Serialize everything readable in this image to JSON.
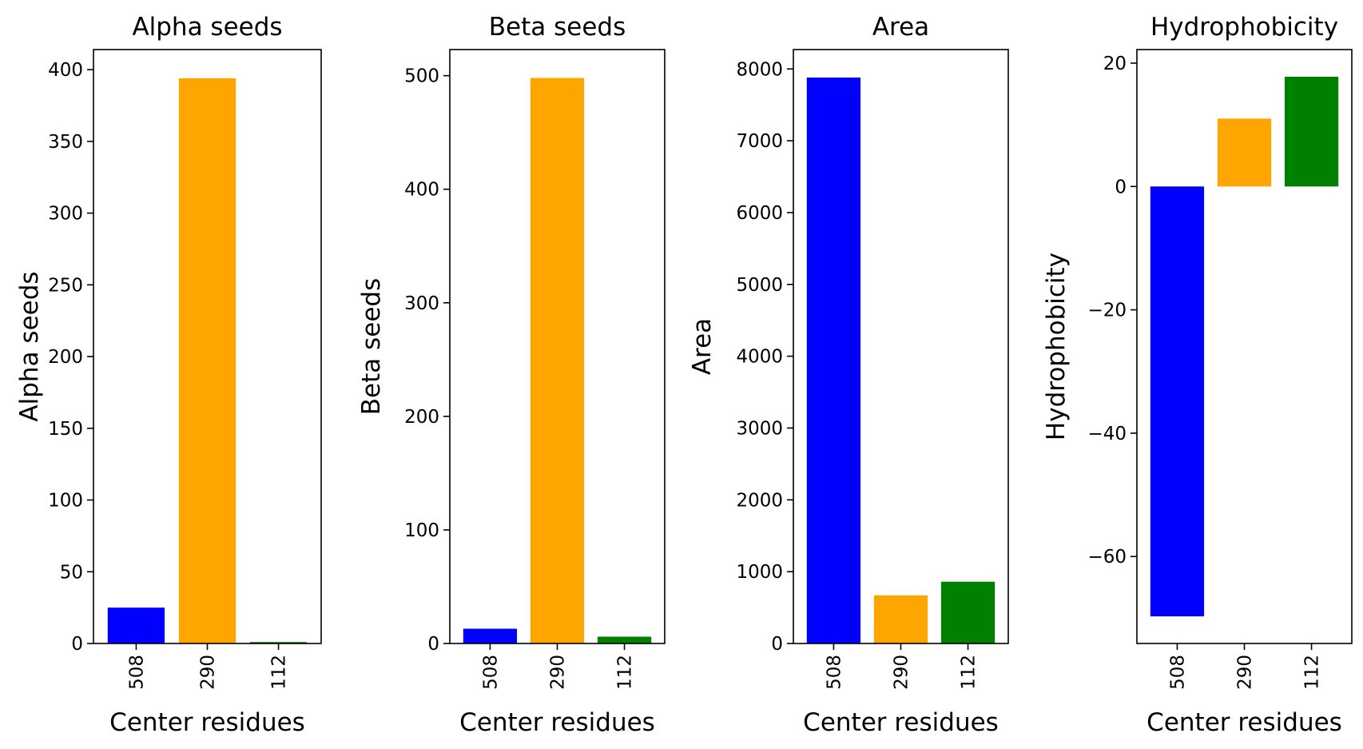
{
  "chart_data": [
    {
      "type": "bar",
      "title": "Alpha seeds",
      "xlabel": "Center residues",
      "ylabel": "Alpha seeds",
      "categories": [
        "508",
        "290",
        "112"
      ],
      "values": [
        25,
        394,
        1
      ],
      "colors": [
        "#0000ff",
        "#ffa500",
        "#008000"
      ],
      "ylim": [
        0,
        414
      ],
      "yticks": [
        0,
        50,
        100,
        150,
        200,
        250,
        300,
        350,
        400
      ],
      "ytick_labels": [
        "0",
        "50",
        "100",
        "150",
        "200",
        "250",
        "300",
        "350",
        "400"
      ],
      "grid": false,
      "legend": false
    },
    {
      "type": "bar",
      "title": "Beta seeds",
      "xlabel": "Center residues",
      "ylabel": "Beta seeds",
      "categories": [
        "508",
        "290",
        "112"
      ],
      "values": [
        13,
        498,
        6
      ],
      "colors": [
        "#0000ff",
        "#ffa500",
        "#008000"
      ],
      "ylim": [
        0,
        523
      ],
      "yticks": [
        0,
        100,
        200,
        300,
        400,
        500
      ],
      "ytick_labels": [
        "0",
        "100",
        "200",
        "300",
        "400",
        "500"
      ],
      "grid": false,
      "legend": false
    },
    {
      "type": "bar",
      "title": "Area",
      "xlabel": "Center residues",
      "ylabel": "Area",
      "categories": [
        "508",
        "290",
        "112"
      ],
      "values": [
        7880,
        670,
        860
      ],
      "colors": [
        "#0000ff",
        "#ffa500",
        "#008000"
      ],
      "ylim": [
        0,
        8270
      ],
      "yticks": [
        0,
        1000,
        2000,
        3000,
        4000,
        5000,
        6000,
        7000,
        8000
      ],
      "ytick_labels": [
        "0",
        "1000",
        "2000",
        "3000",
        "4000",
        "5000",
        "6000",
        "7000",
        "8000"
      ],
      "grid": false,
      "legend": false
    },
    {
      "type": "bar",
      "title": "Hydrophobicity",
      "xlabel": "Center residues",
      "ylabel": "Hydrophobicity",
      "categories": [
        "508",
        "290",
        "112"
      ],
      "values": [
        -69.7,
        11.0,
        17.8
      ],
      "colors": [
        "#0000ff",
        "#ffa500",
        "#008000"
      ],
      "ylim": [
        -74.1,
        22.2
      ],
      "yticks": [
        -60,
        -40,
        -20,
        0,
        20
      ],
      "ytick_labels": [
        "−60",
        "−40",
        "−20",
        "0",
        "20"
      ],
      "grid": false,
      "legend": false
    }
  ]
}
